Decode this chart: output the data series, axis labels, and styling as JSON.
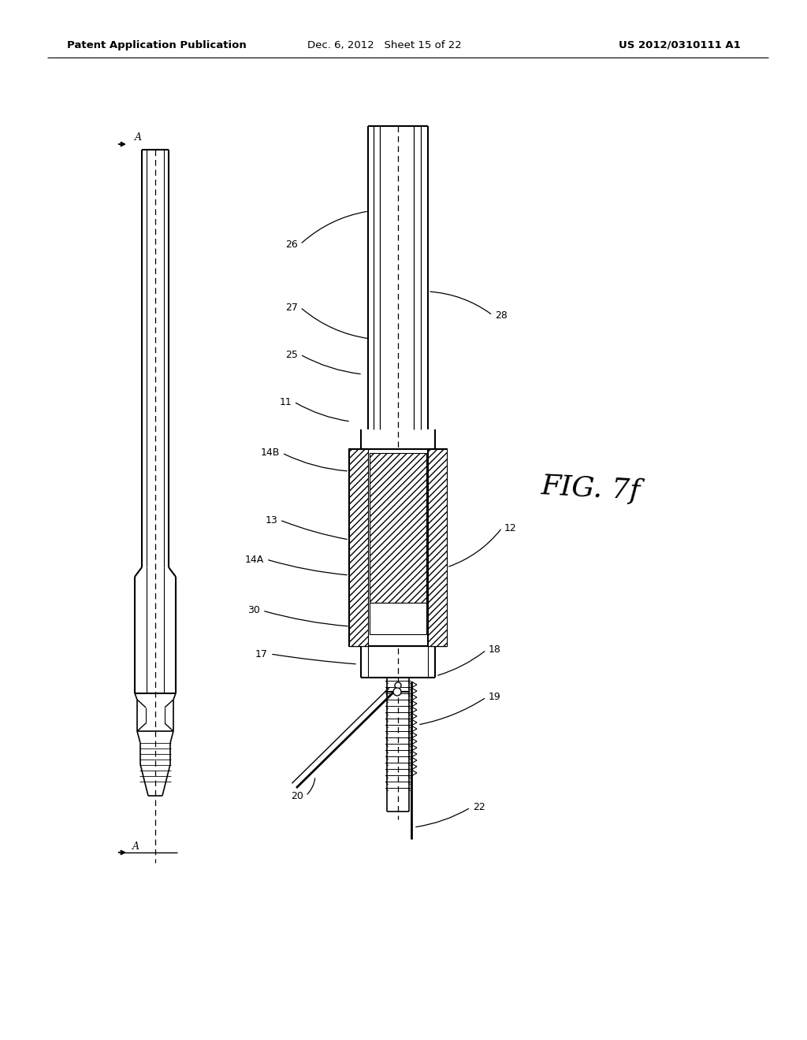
{
  "background_color": "#ffffff",
  "header_left": "Patent Application Publication",
  "header_center": "Dec. 6, 2012   Sheet 15 of 22",
  "header_right": "US 2012/0310111 A1",
  "fig_label": "FIG. 7f",
  "line_color": "#000000"
}
